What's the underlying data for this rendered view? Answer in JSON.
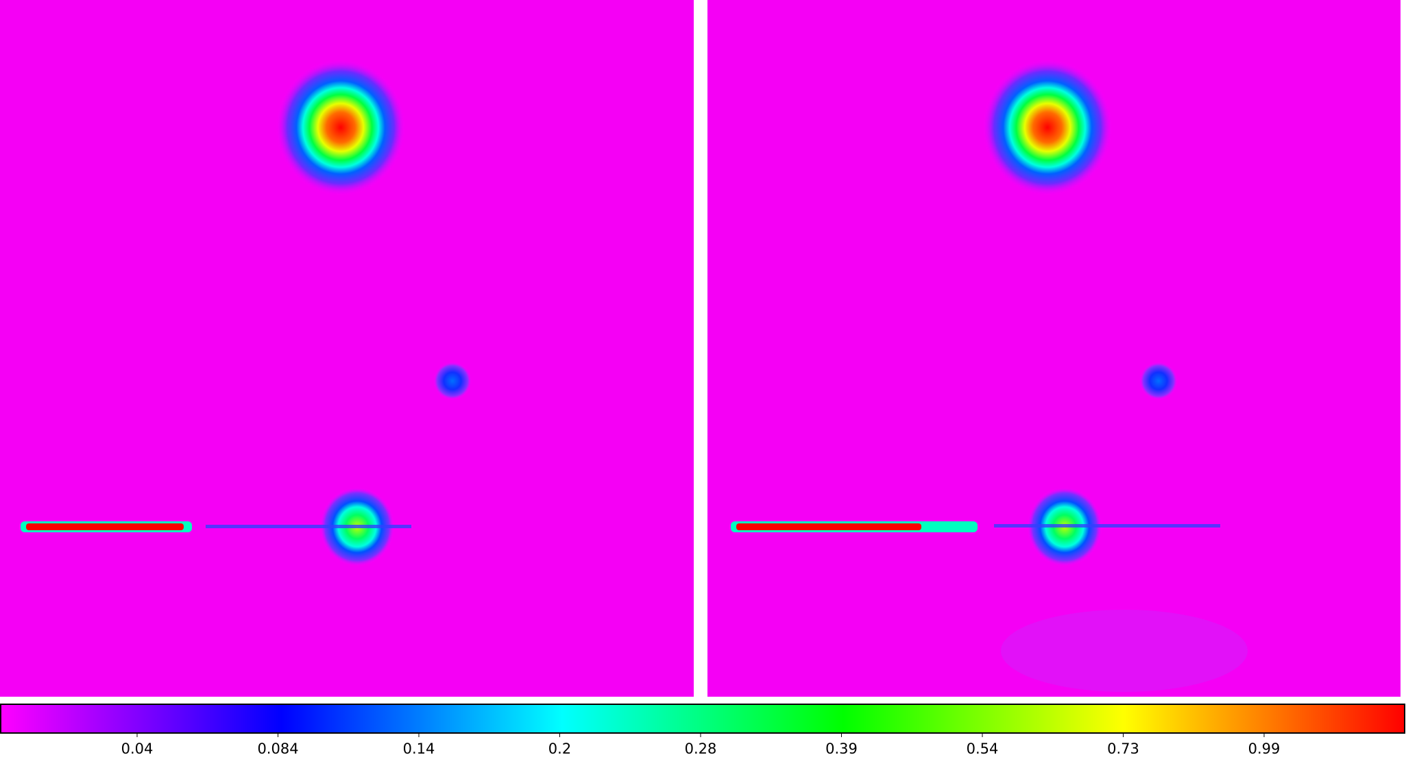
{
  "colorbar": {
    "ticks": [
      0.04,
      0.084,
      0.14,
      0.2,
      0.28,
      0.39,
      0.54,
      0.73,
      0.99
    ]
  }
}
